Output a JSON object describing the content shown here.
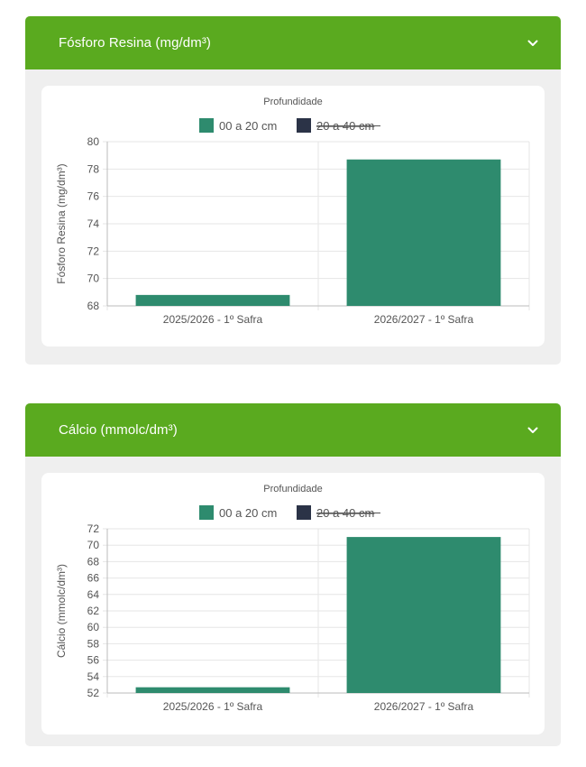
{
  "charts": [
    {
      "header": "Fósforo Resina (mg/dm³)",
      "legend_title": "Profundidade",
      "legend": [
        {
          "label": "00 a 20 cm",
          "color": "#2e8b6e",
          "hidden": false
        },
        {
          "label": "20 a 40 cm",
          "color": "#2b3347",
          "hidden": true
        }
      ],
      "chart_data": {
        "type": "bar",
        "categories": [
          "2025/2026 - 1º Safra",
          "2026/2027 - 1º Safra"
        ],
        "series": [
          {
            "name": "00 a 20 cm",
            "values": [
              68.8,
              78.7
            ]
          }
        ],
        "ylabel": "Fósforo Resina (mg/dm³)",
        "ylim": [
          68,
          80
        ],
        "yticks": [
          "68",
          "70",
          "72",
          "74",
          "76",
          "78",
          "80"
        ],
        "grid": true,
        "legend_position": "top-center"
      }
    },
    {
      "header": "Cálcio (mmolc/dm³)",
      "legend_title": "Profundidade",
      "legend": [
        {
          "label": "00 a 20 cm",
          "color": "#2e8b6e",
          "hidden": false
        },
        {
          "label": "20 a 40 cm",
          "color": "#2b3347",
          "hidden": true
        }
      ],
      "chart_data": {
        "type": "bar",
        "categories": [
          "2025/2026 - 1º Safra",
          "2026/2027 - 1º Safra"
        ],
        "series": [
          {
            "name": "00 a 20 cm",
            "values": [
              52.7,
              71.0
            ]
          }
        ],
        "ylabel": "Cálcio (mmolc/dm³)",
        "ylim": [
          52,
          72
        ],
        "yticks": [
          "52",
          "54",
          "56",
          "58",
          "60",
          "62",
          "64",
          "66",
          "68",
          "70",
          "72"
        ],
        "grid": true,
        "legend_position": "top-center"
      }
    }
  ]
}
